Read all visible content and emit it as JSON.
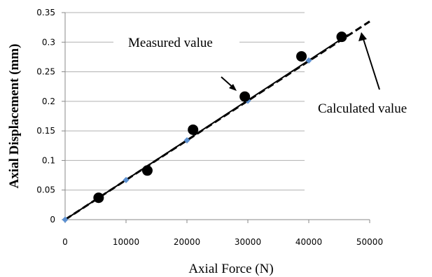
{
  "chart_data": {
    "type": "scatter",
    "title": "",
    "xlabel": "Axial Force (N)",
    "ylabel": "Axial Displacement (mm)",
    "xlim": [
      0,
      50000
    ],
    "ylim": [
      0,
      0.35
    ],
    "x_ticks": [
      0,
      10000,
      20000,
      30000,
      40000,
      50000
    ],
    "x_tick_labels": [
      "0",
      "10000",
      "20000",
      "30000",
      "40000",
      "50000"
    ],
    "y_ticks": [
      0,
      0.05,
      0.1,
      0.15,
      0.2,
      0.25,
      0.3,
      0.35
    ],
    "y_tick_labels": [
      "0",
      "0.05",
      "0.1",
      "0.15",
      "0.2",
      "0.25",
      "0.3",
      "0.35"
    ],
    "grid": "horizontal",
    "series": [
      {
        "name": "Measured value",
        "style": "black-dots",
        "x": [
          5500,
          13500,
          21000,
          29500,
          38800,
          45400
        ],
        "y": [
          0.037,
          0.083,
          0.152,
          0.208,
          0.276,
          0.309
        ]
      },
      {
        "name": "",
        "style": "blue-diamonds",
        "x": [
          0,
          10000,
          20000,
          30000,
          40000
        ],
        "y": [
          0,
          0.067,
          0.134,
          0.201,
          0.269
        ]
      },
      {
        "name": "",
        "style": "solid-trend-line",
        "x": [
          0,
          46500
        ],
        "y": [
          0,
          0.313
        ]
      },
      {
        "name": "Calculated value",
        "style": "dashed-line",
        "x": [
          0,
          50000
        ],
        "y": [
          0,
          0.335
        ]
      }
    ],
    "annotations": [
      {
        "text": "Measured value",
        "target": "measured"
      },
      {
        "text": "Calculated value",
        "target": "calculated"
      }
    ],
    "colors": {
      "measured": "#000000",
      "diamonds": "#5b8fd0",
      "grid": "#b0b0b0",
      "axis": "#888888"
    }
  }
}
